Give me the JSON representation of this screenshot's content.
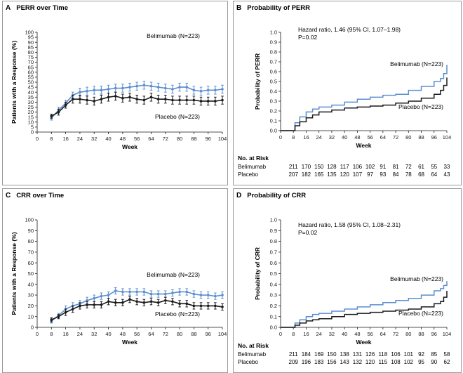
{
  "colors": {
    "belimumab": "#5b8fd0",
    "placebo": "#1a1a1a",
    "frame": "#9a9a9a"
  },
  "chart_data": [
    {
      "panel": "A",
      "title": "PERR over Time",
      "type": "line",
      "xlabel": "Week",
      "ylabel": "Patients with a Response (%)",
      "xlim": [
        0,
        104
      ],
      "ylim": [
        0,
        100
      ],
      "xticks": [
        0,
        8,
        16,
        24,
        32,
        40,
        48,
        56,
        64,
        72,
        80,
        88,
        96,
        104
      ],
      "yticks": [
        0,
        5,
        10,
        15,
        20,
        25,
        30,
        35,
        40,
        45,
        50,
        55,
        60,
        65,
        70,
        75,
        80,
        85,
        90,
        95,
        100
      ],
      "series": [
        {
          "name": "Belimumab",
          "label": "Belimumab (N=223)",
          "color": "#5b8fd0",
          "x": [
            8,
            12,
            16,
            20,
            24,
            28,
            32,
            36,
            40,
            44,
            48,
            52,
            56,
            60,
            64,
            68,
            72,
            76,
            80,
            84,
            88,
            92,
            96,
            100,
            104
          ],
          "y": [
            14,
            22,
            29,
            37,
            40,
            41,
            42,
            42,
            43,
            44,
            44,
            45,
            46,
            47,
            46,
            45,
            44,
            43,
            45,
            45,
            42,
            41,
            42,
            42,
            43
          ],
          "err": [
            2,
            3,
            3,
            3,
            4,
            4,
            4,
            4,
            4,
            4,
            4,
            4,
            4,
            4,
            4,
            4,
            4,
            4,
            4,
            4,
            4,
            4,
            4,
            4,
            4
          ]
        },
        {
          "name": "Placebo",
          "label": "Placebo (N=223)",
          "color": "#1a1a1a",
          "x": [
            8,
            12,
            16,
            20,
            24,
            28,
            32,
            36,
            40,
            44,
            48,
            52,
            56,
            60,
            64,
            68,
            72,
            76,
            80,
            84,
            88,
            92,
            96,
            100,
            104
          ],
          "y": [
            16,
            20,
            27,
            33,
            33,
            32,
            31,
            33,
            35,
            36,
            34,
            35,
            33,
            32,
            35,
            33,
            33,
            32,
            32,
            32,
            32,
            31,
            31,
            31,
            32
          ],
          "err": [
            2,
            3,
            3,
            4,
            4,
            4,
            4,
            4,
            4,
            4,
            4,
            4,
            4,
            4,
            4,
            4,
            4,
            4,
            4,
            4,
            4,
            4,
            4,
            4,
            4
          ]
        }
      ]
    },
    {
      "panel": "B",
      "title": "Probability of PERR",
      "type": "line",
      "xlabel": "Week",
      "ylabel": "Probability of PERR",
      "xlim": [
        0,
        104
      ],
      "ylim": [
        0,
        1.0
      ],
      "xticks": [
        0,
        8,
        16,
        24,
        32,
        40,
        48,
        56,
        64,
        72,
        80,
        88,
        96,
        104
      ],
      "yticks": [
        "0.0",
        "0.1",
        "0.2",
        "0.3",
        "0.4",
        "0.5",
        "0.6",
        "0.7",
        "0.8",
        "0.9",
        "1.0"
      ],
      "annotation": [
        "Hazard ratio, 1.46 (95% CI, 1.07–1.98)",
        "P=0.02"
      ],
      "series": [
        {
          "name": "Belimumab",
          "label": "Belimumab (N=223)",
          "color": "#5b8fd0",
          "x": [
            0,
            8,
            9,
            12,
            16,
            20,
            24,
            32,
            40,
            48,
            56,
            64,
            72,
            80,
            88,
            96,
            100,
            102,
            104
          ],
          "y": [
            0,
            0,
            0.08,
            0.14,
            0.19,
            0.22,
            0.24,
            0.26,
            0.29,
            0.32,
            0.34,
            0.36,
            0.37,
            0.41,
            0.45,
            0.5,
            0.53,
            0.58,
            0.67
          ]
        },
        {
          "name": "Placebo",
          "label": "Placebo (N=223)",
          "color": "#1a1a1a",
          "x": [
            0,
            8,
            9,
            12,
            16,
            20,
            24,
            32,
            40,
            48,
            56,
            64,
            72,
            80,
            88,
            96,
            100,
            102,
            104
          ],
          "y": [
            0,
            0,
            0.05,
            0.09,
            0.13,
            0.16,
            0.19,
            0.21,
            0.23,
            0.24,
            0.25,
            0.26,
            0.28,
            0.3,
            0.33,
            0.37,
            0.41,
            0.46,
            0.54
          ]
        }
      ],
      "risk": {
        "heading": "No. at Risk",
        "rows": [
          {
            "label": "Belimumab",
            "values": [
              "211",
              "170",
              "150",
              "128",
              "117",
              "106",
              "102",
              "91",
              "81",
              "72",
              "61",
              "55",
              "33"
            ]
          },
          {
            "label": "Placebo",
            "values": [
              "207",
              "182",
              "165",
              "135",
              "120",
              "107",
              "97",
              "93",
              "84",
              "78",
              "68",
              "64",
              "43"
            ]
          }
        ]
      }
    },
    {
      "panel": "C",
      "title": "CRR over Time",
      "type": "line",
      "xlabel": "Week",
      "ylabel": "Patients with a Response (%)",
      "xlim": [
        0,
        104
      ],
      "ylim": [
        0,
        100
      ],
      "xticks": [
        0,
        8,
        16,
        24,
        32,
        40,
        48,
        56,
        64,
        72,
        80,
        88,
        96,
        104
      ],
      "yticks": [
        0,
        10,
        20,
        30,
        40,
        50,
        60,
        70,
        80,
        90,
        100
      ],
      "series": [
        {
          "name": "Belimumab",
          "label": "Belimumab (N=223)",
          "color": "#5b8fd0",
          "x": [
            8,
            12,
            16,
            20,
            24,
            28,
            32,
            36,
            40,
            44,
            48,
            52,
            56,
            60,
            64,
            68,
            72,
            76,
            80,
            84,
            88,
            92,
            96,
            100,
            104
          ],
          "y": [
            6,
            11,
            17,
            20,
            22,
            25,
            27,
            29,
            30,
            34,
            33,
            33,
            33,
            33,
            31,
            31,
            31,
            32,
            33,
            33,
            31,
            30,
            30,
            29,
            30
          ],
          "err": [
            2,
            2,
            3,
            3,
            3,
            3,
            3,
            3,
            3,
            3,
            3,
            3,
            3,
            3,
            3,
            3,
            3,
            3,
            3,
            3,
            3,
            3,
            3,
            3,
            3
          ]
        },
        {
          "name": "Placebo",
          "label": "Placebo (N=223)",
          "color": "#1a1a1a",
          "x": [
            8,
            12,
            16,
            20,
            24,
            28,
            32,
            36,
            40,
            44,
            48,
            52,
            56,
            60,
            64,
            68,
            72,
            76,
            80,
            84,
            88,
            92,
            96,
            100,
            104
          ],
          "y": [
            7,
            10,
            14,
            17,
            20,
            21,
            21,
            21,
            24,
            23,
            23,
            26,
            24,
            23,
            24,
            23,
            25,
            24,
            22,
            22,
            20,
            20,
            20,
            20,
            19
          ],
          "err": [
            2,
            2,
            3,
            3,
            3,
            3,
            3,
            3,
            3,
            3,
            3,
            3,
            3,
            3,
            3,
            3,
            3,
            3,
            3,
            3,
            3,
            3,
            3,
            3,
            3
          ]
        }
      ]
    },
    {
      "panel": "D",
      "title": "Probability of CRR",
      "type": "line",
      "xlabel": "Week",
      "ylabel": "Probability of CRR",
      "xlim": [
        0,
        104
      ],
      "ylim": [
        0,
        1.0
      ],
      "xticks": [
        0,
        8,
        16,
        24,
        32,
        40,
        48,
        56,
        64,
        72,
        80,
        88,
        96,
        104
      ],
      "yticks": [
        "0.0",
        "0.1",
        "0.2",
        "0.3",
        "0.4",
        "0.5",
        "0.6",
        "0.7",
        "0.8",
        "0.9",
        "1.0"
      ],
      "annotation": [
        "Hazard ratio, 1.58 (95% CI, 1.08–2.31)",
        "P=0.02"
      ],
      "series": [
        {
          "name": "Belimumab",
          "label": "Belimumab (N=223)",
          "color": "#5b8fd0",
          "x": [
            0,
            8,
            9,
            12,
            16,
            20,
            24,
            32,
            40,
            48,
            56,
            64,
            72,
            80,
            88,
            96,
            100,
            102,
            104
          ],
          "y": [
            0,
            0,
            0.04,
            0.07,
            0.1,
            0.12,
            0.13,
            0.15,
            0.17,
            0.19,
            0.21,
            0.23,
            0.25,
            0.27,
            0.3,
            0.34,
            0.36,
            0.39,
            0.43
          ]
        },
        {
          "name": "Placebo",
          "label": "Placebo (N=223)",
          "color": "#1a1a1a",
          "x": [
            0,
            8,
            9,
            12,
            16,
            20,
            24,
            32,
            40,
            48,
            56,
            64,
            72,
            80,
            88,
            96,
            100,
            102,
            104
          ],
          "y": [
            0,
            0,
            0.02,
            0.04,
            0.06,
            0.07,
            0.08,
            0.1,
            0.12,
            0.13,
            0.14,
            0.15,
            0.16,
            0.17,
            0.19,
            0.22,
            0.24,
            0.28,
            0.34
          ]
        }
      ],
      "risk": {
        "heading": "No. at Risk",
        "rows": [
          {
            "label": "Belimumab",
            "values": [
              "211",
              "184",
              "169",
              "150",
              "138",
              "131",
              "126",
              "118",
              "106",
              "101",
              "92",
              "85",
              "58"
            ]
          },
          {
            "label": "Placebo",
            "values": [
              "209",
              "196",
              "183",
              "156",
              "143",
              "132",
              "120",
              "115",
              "108",
              "102",
              "95",
              "90",
              "62"
            ]
          }
        ]
      }
    }
  ]
}
